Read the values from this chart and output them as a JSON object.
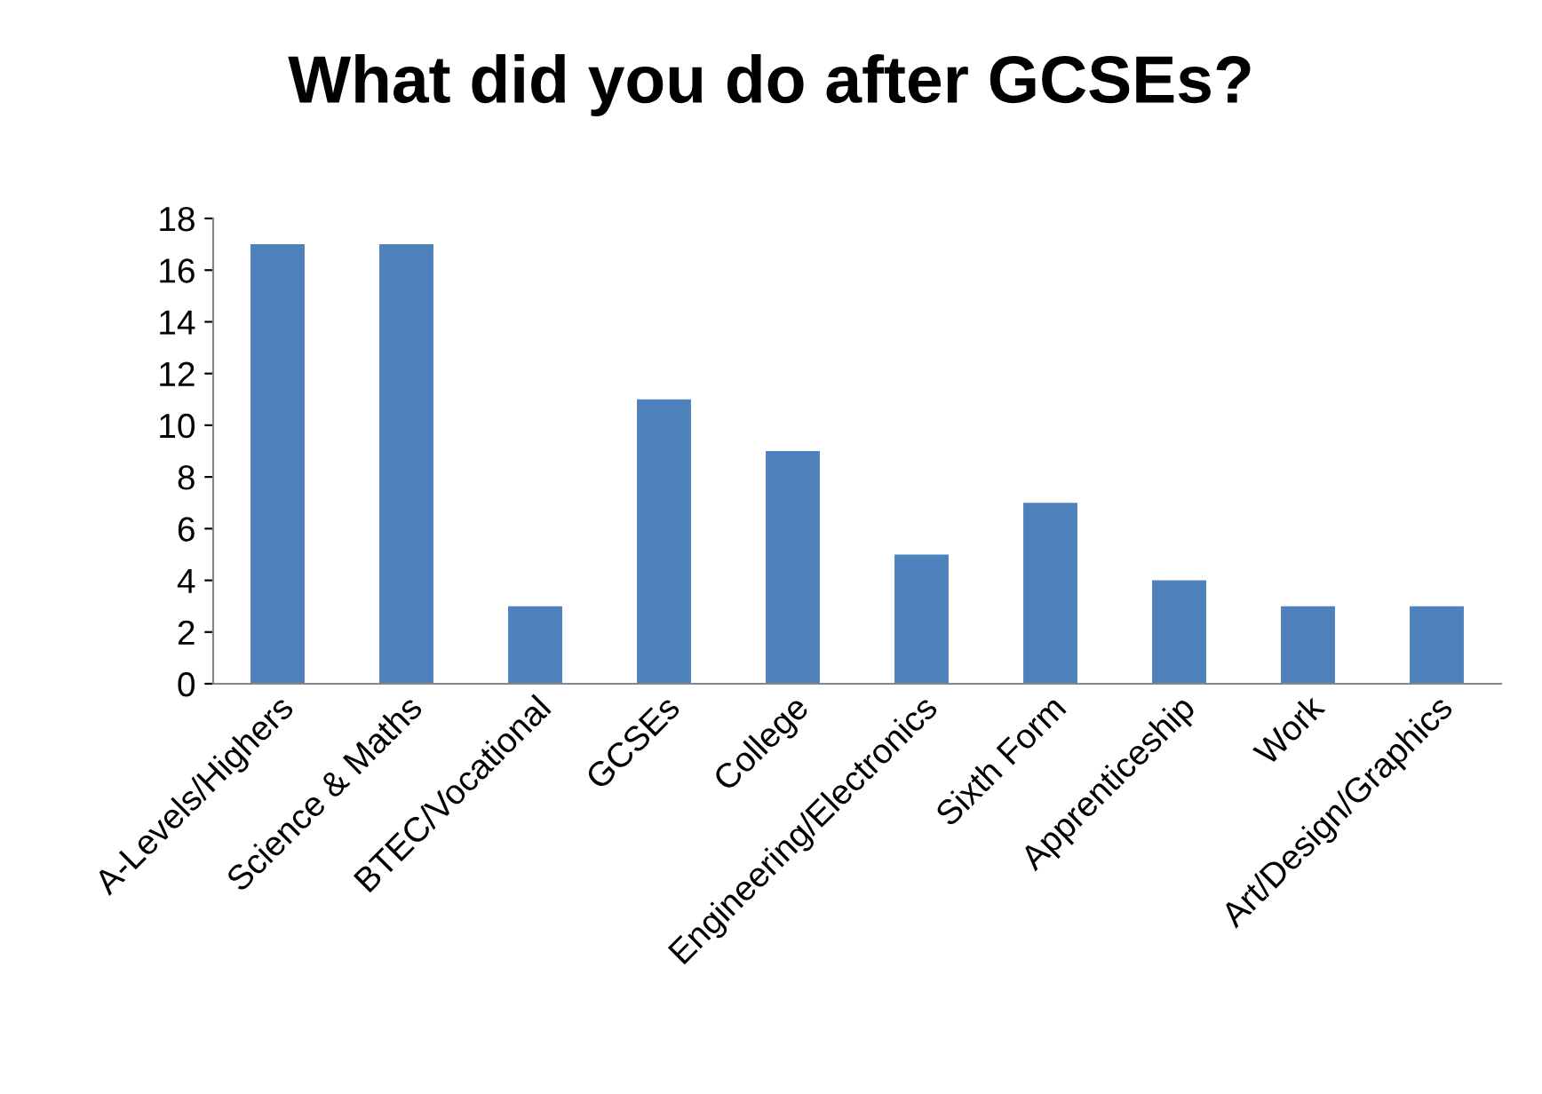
{
  "chart_data": {
    "type": "bar",
    "title": "What did you do after GCSEs?",
    "categories": [
      "A-Levels/Highers",
      "Science & Maths",
      "BTEC/Vocational",
      "GCSEs",
      "College",
      "Engineering/Electronics",
      "Sixth Form",
      "Apprenticeship",
      "Work",
      "Art/Design/Graphics"
    ],
    "values": [
      17,
      17,
      3,
      11,
      9,
      5,
      7,
      4,
      3,
      3
    ],
    "color": "#4f81bd",
    "ylim": [
      0,
      18
    ],
    "yticks": [
      0,
      2,
      4,
      6,
      8,
      10,
      12,
      14,
      16,
      18
    ],
    "grid": false,
    "legend": false
  }
}
